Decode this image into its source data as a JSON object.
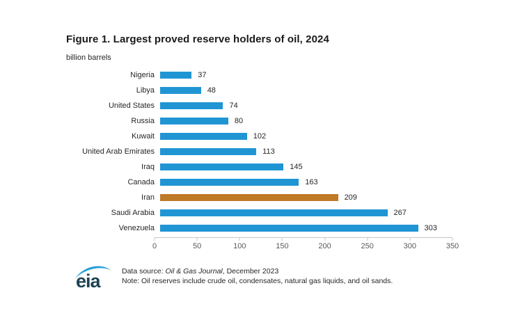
{
  "chart_data": {
    "type": "bar",
    "orientation": "horizontal",
    "title": "Figure 1. Largest proved reserve holders of oil, 2024",
    "unit_label": "billion barrels",
    "categories": [
      "Nigeria",
      "Libya",
      "United States",
      "Russia",
      "Kuwait",
      "United Arab Emirates",
      "Iraq",
      "Canada",
      "Iran",
      "Saudi Arabia",
      "Venezuela"
    ],
    "values": [
      37,
      48,
      74,
      80,
      102,
      113,
      145,
      163,
      209,
      267,
      303
    ],
    "highlight_category": "Iran",
    "bar_color": "#2095d4",
    "highlight_color": "#bf7a28",
    "xlim": [
      0,
      350
    ],
    "x_ticks": [
      0,
      50,
      100,
      150,
      200,
      250,
      300,
      350
    ],
    "grid": false,
    "legend": false
  },
  "footer": {
    "logo_text": "eia",
    "source_prefix": "Data source: ",
    "source_name": "Oil & Gas Journal",
    "source_suffix": ", December 2023",
    "note": "Note: Oil reserves include crude oil, condensates, natural gas liquids, and oil sands."
  }
}
